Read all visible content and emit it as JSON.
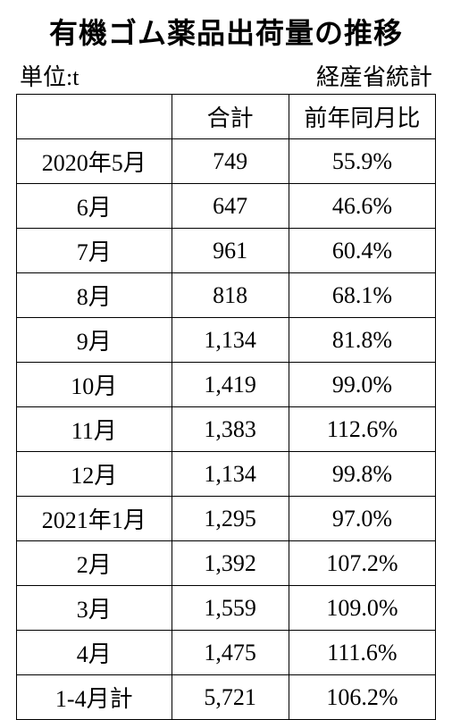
{
  "title": "有機ゴム薬品出荷量の推移",
  "unit_label": "単位:t",
  "source_label": "経産省統計",
  "table": {
    "type": "table",
    "columns": [
      "",
      "合計",
      "前年同月比"
    ],
    "column_widths": [
      "37%",
      "28%",
      "35%"
    ],
    "rows": [
      [
        "2020年5月",
        "749",
        "55.9%"
      ],
      [
        "6月",
        "647",
        "46.6%"
      ],
      [
        "7月",
        "961",
        "60.4%"
      ],
      [
        "8月",
        "818",
        "68.1%"
      ],
      [
        "9月",
        "1,134",
        "81.8%"
      ],
      [
        "10月",
        "1,419",
        "99.0%"
      ],
      [
        "11月",
        "1,383",
        "112.6%"
      ],
      [
        "12月",
        "1,134",
        "99.8%"
      ],
      [
        "2021年1月",
        "1,295",
        "97.0%"
      ],
      [
        "2月",
        "1,392",
        "107.2%"
      ],
      [
        "3月",
        "1,559",
        "109.0%"
      ],
      [
        "4月",
        "1,475",
        "111.6%"
      ],
      [
        "1-4月計",
        "5,721",
        "106.2%"
      ]
    ],
    "border_color": "#000000",
    "background_color": "#ffffff",
    "font_size": 26,
    "title_fontsize": 32
  }
}
